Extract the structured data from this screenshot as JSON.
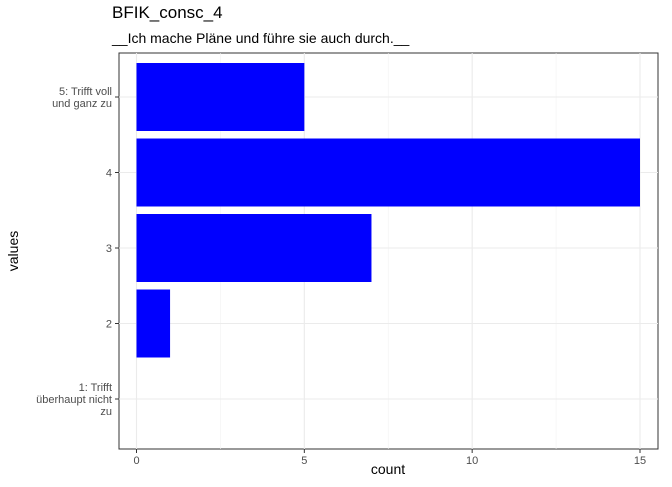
{
  "chart_data": {
    "type": "bar",
    "orientation": "horizontal",
    "title": "BFIK_consc_4",
    "subtitle": "__Ich mache Pläne und führe sie auch durch.__",
    "xlabel": "count",
    "ylabel": "values",
    "categories": [
      "1: Trifft überhaupt nicht zu",
      "2",
      "3",
      "4",
      "5: Trifft voll und ganz zu"
    ],
    "category_lines": [
      [
        "1: Trifft",
        "überhaupt nicht",
        "zu"
      ],
      [
        "2"
      ],
      [
        "3"
      ],
      [
        "4"
      ],
      [
        "5: Trifft voll",
        "und ganz zu"
      ]
    ],
    "values": [
      0,
      1,
      7,
      15,
      5
    ],
    "xlim": [
      0,
      15
    ],
    "xticks": [
      0,
      5,
      10,
      15
    ],
    "bar_color": "#0000ff",
    "grid": true,
    "legend": "none"
  }
}
